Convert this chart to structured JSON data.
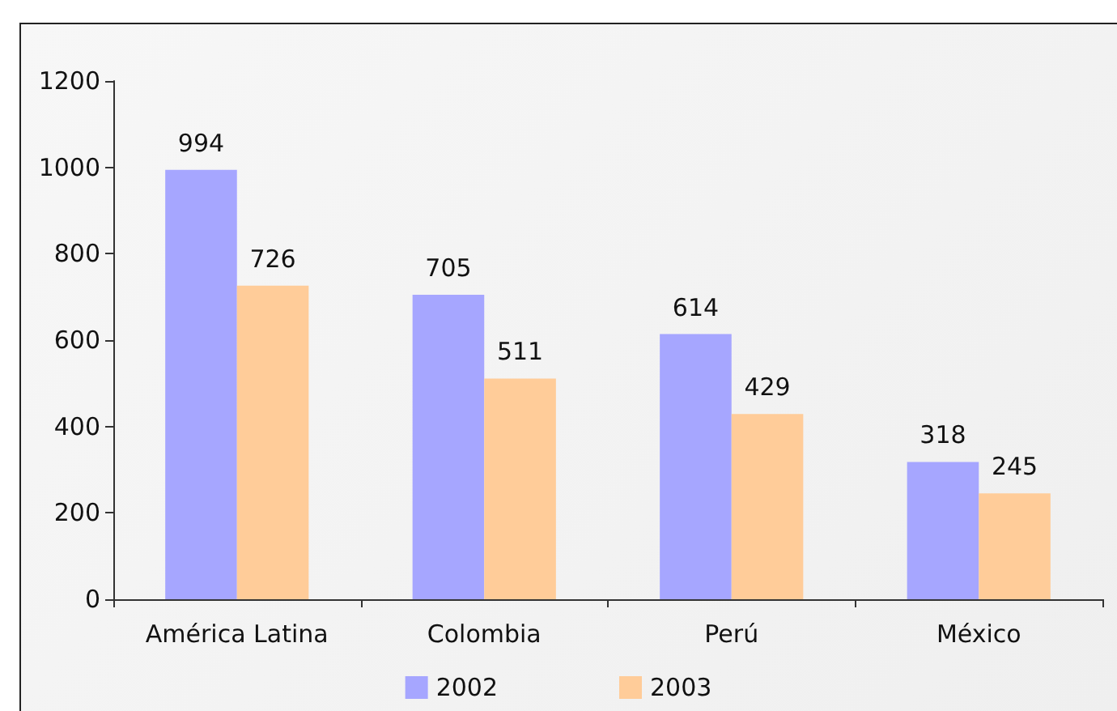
{
  "chart_data": {
    "type": "bar",
    "categories": [
      "América Latina",
      "Colombia",
      "Perú",
      "México"
    ],
    "series": [
      {
        "name": "2002",
        "color": "#a6a6ff",
        "values": [
          994,
          705,
          614,
          318
        ]
      },
      {
        "name": "2003",
        "color": "#ffcc99",
        "values": [
          726,
          511,
          429,
          245
        ]
      }
    ],
    "ylim": [
      0,
      1200
    ],
    "yticks": [
      0,
      200,
      400,
      600,
      800,
      1000,
      1200
    ],
    "data_labels": true,
    "legend": "bottom",
    "grid": false
  }
}
